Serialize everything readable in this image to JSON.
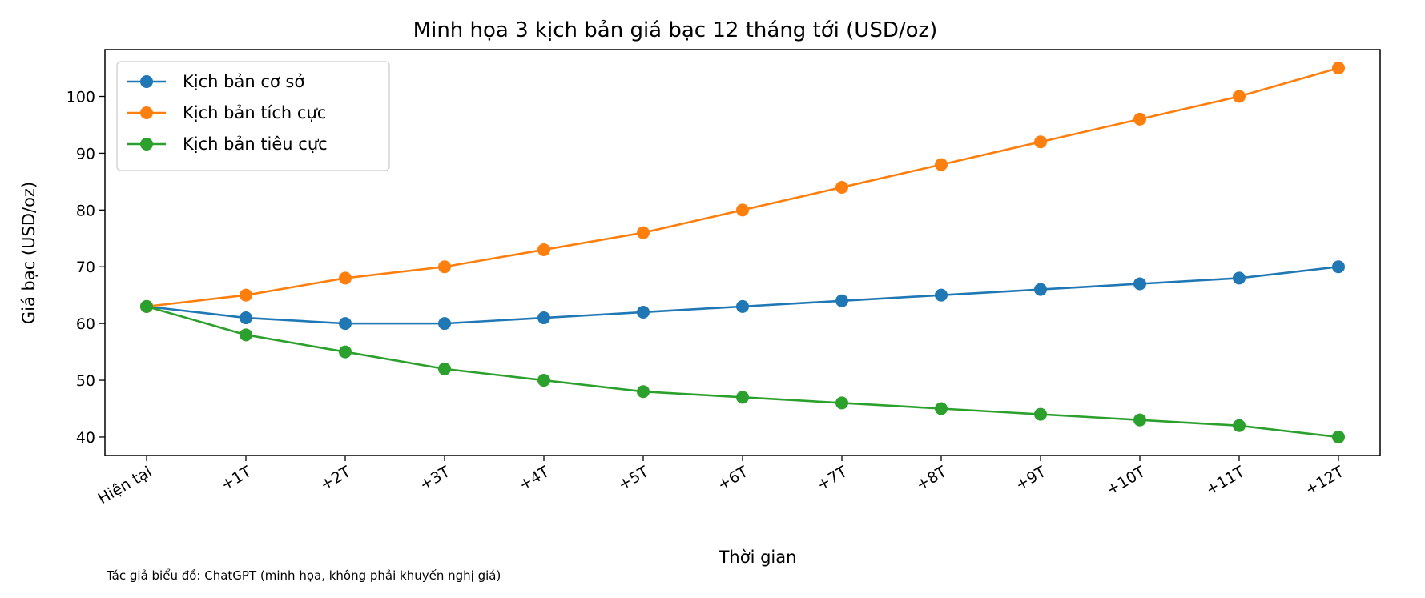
{
  "chart_data": {
    "type": "line",
    "title": "Minh họa 3 kịch bản giá bạc 12 tháng tới (USD/oz)",
    "xlabel": "Thời gian",
    "ylabel": "Giá bạc (USD/oz)",
    "categories": [
      "Hiện tại",
      "+1T",
      "+2T",
      "+3T",
      "+4T",
      "+5T",
      "+6T",
      "+7T",
      "+8T",
      "+9T",
      "+10T",
      "+11T",
      "+12T"
    ],
    "ylim": [
      36.75,
      108.25
    ],
    "yticks": [
      40,
      50,
      60,
      70,
      80,
      90,
      100
    ],
    "grid": false,
    "legend_position": "top-left",
    "series": [
      {
        "name": "Kịch bản cơ sở",
        "color": "#1f77b4",
        "values": [
          63,
          61,
          60,
          60,
          61,
          62,
          63,
          64,
          65,
          66,
          67,
          68,
          70
        ]
      },
      {
        "name": "Kịch bản tích cực",
        "color": "#ff7f0e",
        "values": [
          63,
          65,
          68,
          70,
          73,
          76,
          80,
          84,
          88,
          92,
          96,
          100,
          105
        ]
      },
      {
        "name": "Kịch bản tiêu cực",
        "color": "#2ca02c",
        "values": [
          63,
          58,
          55,
          52,
          50,
          48,
          47,
          46,
          45,
          44,
          43,
          42,
          40
        ]
      }
    ],
    "footnote": "Tác giả biểu đồ: ChatGPT (minh họa, không phải khuyến nghị giá)"
  }
}
